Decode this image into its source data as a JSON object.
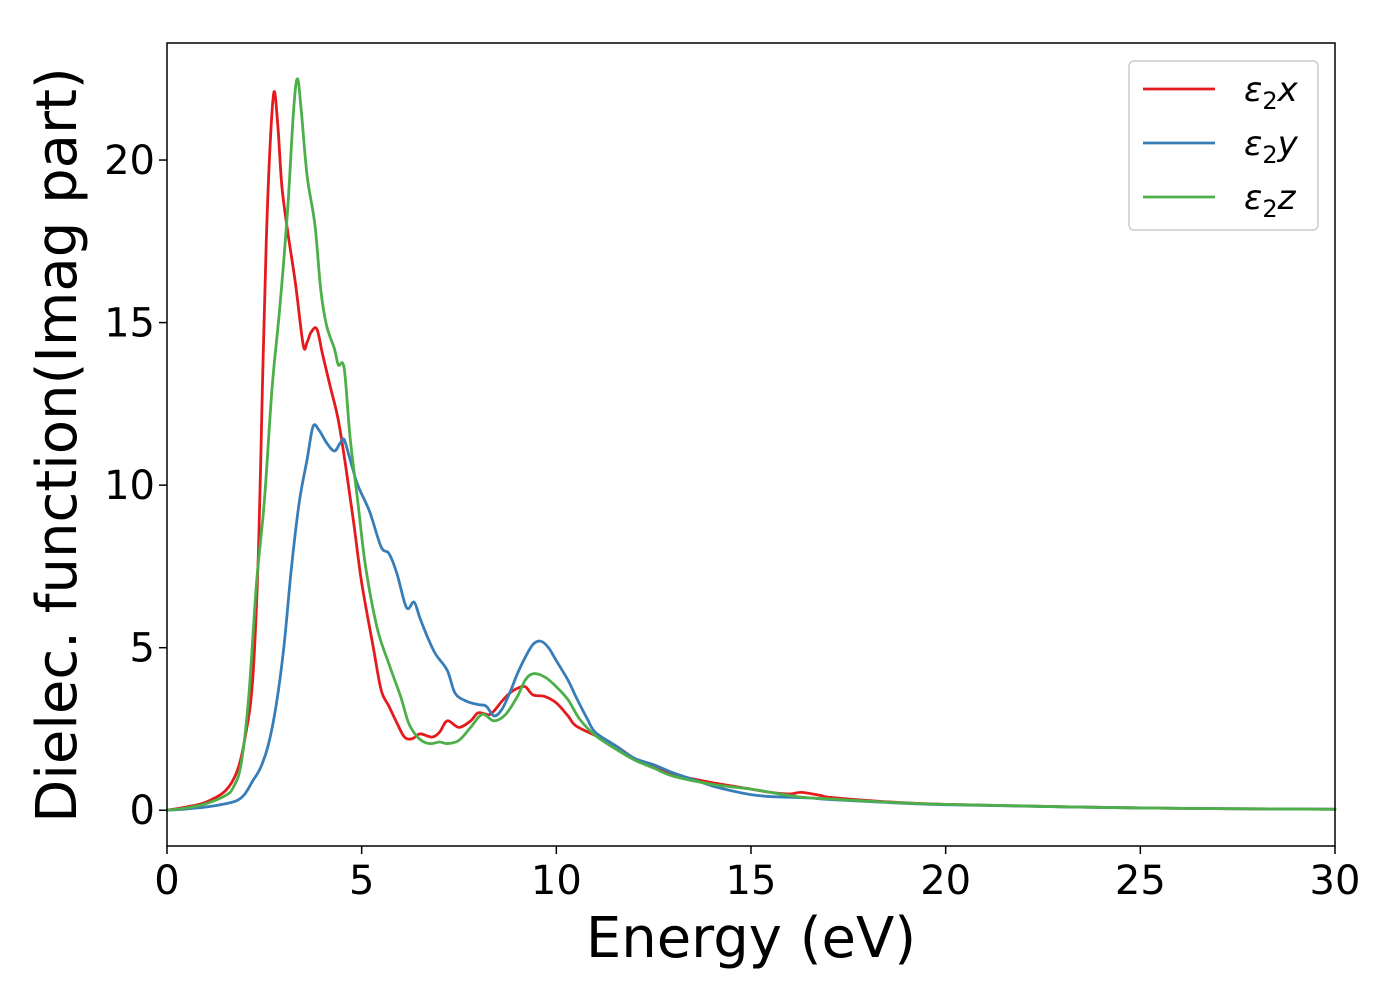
{
  "chart_data": {
    "type": "line",
    "title": "",
    "xlabel": "Energy (eV)",
    "ylabel": "Dielec. function(Imag part)",
    "xlim": [
      0,
      30
    ],
    "ylim": [
      -1.1,
      23.6
    ],
    "xticks": [
      0,
      5,
      10,
      15,
      20,
      25,
      30
    ],
    "yticks": [
      0,
      5,
      10,
      15,
      20
    ],
    "grid": false,
    "legend_position": "top-right",
    "series": [
      {
        "name": "ε2x",
        "legend": {
          "base": "ε",
          "sub": "2",
          "suffix": "x"
        },
        "color": "#e41a1c",
        "points": [
          [
            0,
            0
          ],
          [
            0.5,
            0.1
          ],
          [
            1,
            0.25
          ],
          [
            1.5,
            0.6
          ],
          [
            1.8,
            1.2
          ],
          [
            2.0,
            2.2
          ],
          [
            2.2,
            4
          ],
          [
            2.35,
            8
          ],
          [
            2.45,
            13
          ],
          [
            2.55,
            17.5
          ],
          [
            2.65,
            20.5
          ],
          [
            2.75,
            22.1
          ],
          [
            2.85,
            21.0
          ],
          [
            2.95,
            19.2
          ],
          [
            3.1,
            17.8
          ],
          [
            3.3,
            16.2
          ],
          [
            3.5,
            14.3
          ],
          [
            3.6,
            14.4
          ],
          [
            3.7,
            14.7
          ],
          [
            3.85,
            14.8
          ],
          [
            4.0,
            14.0
          ],
          [
            4.2,
            13.0
          ],
          [
            4.4,
            12.0
          ],
          [
            4.6,
            10.5
          ],
          [
            4.8,
            8.8
          ],
          [
            5.0,
            7.0
          ],
          [
            5.3,
            5.0
          ],
          [
            5.5,
            3.7
          ],
          [
            5.7,
            3.2
          ],
          [
            5.9,
            2.7
          ],
          [
            6.1,
            2.25
          ],
          [
            6.3,
            2.2
          ],
          [
            6.5,
            2.35
          ],
          [
            6.8,
            2.25
          ],
          [
            7.0,
            2.4
          ],
          [
            7.2,
            2.75
          ],
          [
            7.5,
            2.55
          ],
          [
            7.8,
            2.75
          ],
          [
            8.0,
            3.0
          ],
          [
            8.3,
            2.95
          ],
          [
            8.6,
            3.35
          ],
          [
            8.8,
            3.6
          ],
          [
            9.0,
            3.75
          ],
          [
            9.2,
            3.8
          ],
          [
            9.4,
            3.55
          ],
          [
            9.7,
            3.5
          ],
          [
            10.0,
            3.3
          ],
          [
            10.3,
            2.9
          ],
          [
            10.5,
            2.6
          ],
          [
            11.0,
            2.3
          ],
          [
            11.5,
            2.0
          ],
          [
            12.0,
            1.6
          ],
          [
            12.5,
            1.35
          ],
          [
            13.0,
            1.1
          ],
          [
            14.0,
            0.85
          ],
          [
            15.0,
            0.65
          ],
          [
            15.5,
            0.55
          ],
          [
            16.0,
            0.5
          ],
          [
            16.3,
            0.55
          ],
          [
            16.8,
            0.45
          ],
          [
            17.0,
            0.4
          ],
          [
            18.0,
            0.3
          ],
          [
            20.0,
            0.18
          ],
          [
            25.0,
            0.07
          ],
          [
            30.0,
            0.03
          ]
        ]
      },
      {
        "name": "ε2y",
        "legend": {
          "base": "ε",
          "sub": "2",
          "suffix": "y"
        },
        "color": "#377eb8",
        "points": [
          [
            0,
            0
          ],
          [
            0.5,
            0.04
          ],
          [
            1,
            0.1
          ],
          [
            1.5,
            0.2
          ],
          [
            1.8,
            0.3
          ],
          [
            2.0,
            0.5
          ],
          [
            2.2,
            0.9
          ],
          [
            2.4,
            1.3
          ],
          [
            2.6,
            2.0
          ],
          [
            2.8,
            3.2
          ],
          [
            3.0,
            5.0
          ],
          [
            3.2,
            7.5
          ],
          [
            3.4,
            9.5
          ],
          [
            3.6,
            10.8
          ],
          [
            3.75,
            11.8
          ],
          [
            3.9,
            11.7
          ],
          [
            4.1,
            11.3
          ],
          [
            4.3,
            11.05
          ],
          [
            4.45,
            11.3
          ],
          [
            4.55,
            11.4
          ],
          [
            4.7,
            10.8
          ],
          [
            4.9,
            10.0
          ],
          [
            5.2,
            9.2
          ],
          [
            5.5,
            8.1
          ],
          [
            5.7,
            7.9
          ],
          [
            5.9,
            7.3
          ],
          [
            6.1,
            6.4
          ],
          [
            6.2,
            6.2
          ],
          [
            6.35,
            6.4
          ],
          [
            6.5,
            5.9
          ],
          [
            6.7,
            5.3
          ],
          [
            6.9,
            4.8
          ],
          [
            7.2,
            4.3
          ],
          [
            7.4,
            3.6
          ],
          [
            7.7,
            3.35
          ],
          [
            8.0,
            3.25
          ],
          [
            8.2,
            3.2
          ],
          [
            8.4,
            2.9
          ],
          [
            8.6,
            3.1
          ],
          [
            8.8,
            3.6
          ],
          [
            9.0,
            4.2
          ],
          [
            9.2,
            4.7
          ],
          [
            9.4,
            5.1
          ],
          [
            9.6,
            5.2
          ],
          [
            9.8,
            5.0
          ],
          [
            10.0,
            4.6
          ],
          [
            10.3,
            4.0
          ],
          [
            10.5,
            3.5
          ],
          [
            10.8,
            2.8
          ],
          [
            11.0,
            2.4
          ],
          [
            11.5,
            2.0
          ],
          [
            12.0,
            1.6
          ],
          [
            12.5,
            1.4
          ],
          [
            13.0,
            1.15
          ],
          [
            13.5,
            0.95
          ],
          [
            14.0,
            0.75
          ],
          [
            14.5,
            0.6
          ],
          [
            15.0,
            0.48
          ],
          [
            15.5,
            0.42
          ],
          [
            16.0,
            0.4
          ],
          [
            16.5,
            0.38
          ],
          [
            17.0,
            0.33
          ],
          [
            18.0,
            0.27
          ],
          [
            20.0,
            0.17
          ],
          [
            25.0,
            0.07
          ],
          [
            30.0,
            0.03
          ]
        ]
      },
      {
        "name": "ε2z",
        "legend": {
          "base": "ε",
          "sub": "2",
          "suffix": "z"
        },
        "color": "#4daf4a",
        "points": [
          [
            0,
            0
          ],
          [
            0.5,
            0.07
          ],
          [
            1,
            0.2
          ],
          [
            1.5,
            0.45
          ],
          [
            1.7,
            0.7
          ],
          [
            1.9,
            1.4
          ],
          [
            2.1,
            3.5
          ],
          [
            2.3,
            7.0
          ],
          [
            2.5,
            9.5
          ],
          [
            2.7,
            13.0
          ],
          [
            2.9,
            15.5
          ],
          [
            3.1,
            18.5
          ],
          [
            3.25,
            21.5
          ],
          [
            3.35,
            22.5
          ],
          [
            3.45,
            21.5
          ],
          [
            3.6,
            19.5
          ],
          [
            3.8,
            18.0
          ],
          [
            3.95,
            16.0
          ],
          [
            4.1,
            14.9
          ],
          [
            4.3,
            14.2
          ],
          [
            4.4,
            13.7
          ],
          [
            4.55,
            13.6
          ],
          [
            4.7,
            11.5
          ],
          [
            4.9,
            9.5
          ],
          [
            5.1,
            7.5
          ],
          [
            5.4,
            5.6
          ],
          [
            5.7,
            4.5
          ],
          [
            6.0,
            3.5
          ],
          [
            6.2,
            2.7
          ],
          [
            6.4,
            2.3
          ],
          [
            6.6,
            2.1
          ],
          [
            6.8,
            2.05
          ],
          [
            7.0,
            2.1
          ],
          [
            7.2,
            2.05
          ],
          [
            7.5,
            2.15
          ],
          [
            7.8,
            2.55
          ],
          [
            8.1,
            2.95
          ],
          [
            8.4,
            2.75
          ],
          [
            8.7,
            2.95
          ],
          [
            9.0,
            3.5
          ],
          [
            9.2,
            4.0
          ],
          [
            9.4,
            4.2
          ],
          [
            9.7,
            4.1
          ],
          [
            10.0,
            3.8
          ],
          [
            10.3,
            3.4
          ],
          [
            10.6,
            2.8
          ],
          [
            11.0,
            2.3
          ],
          [
            11.5,
            1.9
          ],
          [
            12.0,
            1.55
          ],
          [
            12.5,
            1.3
          ],
          [
            13.0,
            1.05
          ],
          [
            14.0,
            0.8
          ],
          [
            15.0,
            0.65
          ],
          [
            15.5,
            0.55
          ],
          [
            16.0,
            0.45
          ],
          [
            16.5,
            0.38
          ],
          [
            17.0,
            0.35
          ],
          [
            18.0,
            0.28
          ],
          [
            20.0,
            0.18
          ],
          [
            25.0,
            0.07
          ],
          [
            30.0,
            0.03
          ]
        ]
      }
    ]
  }
}
